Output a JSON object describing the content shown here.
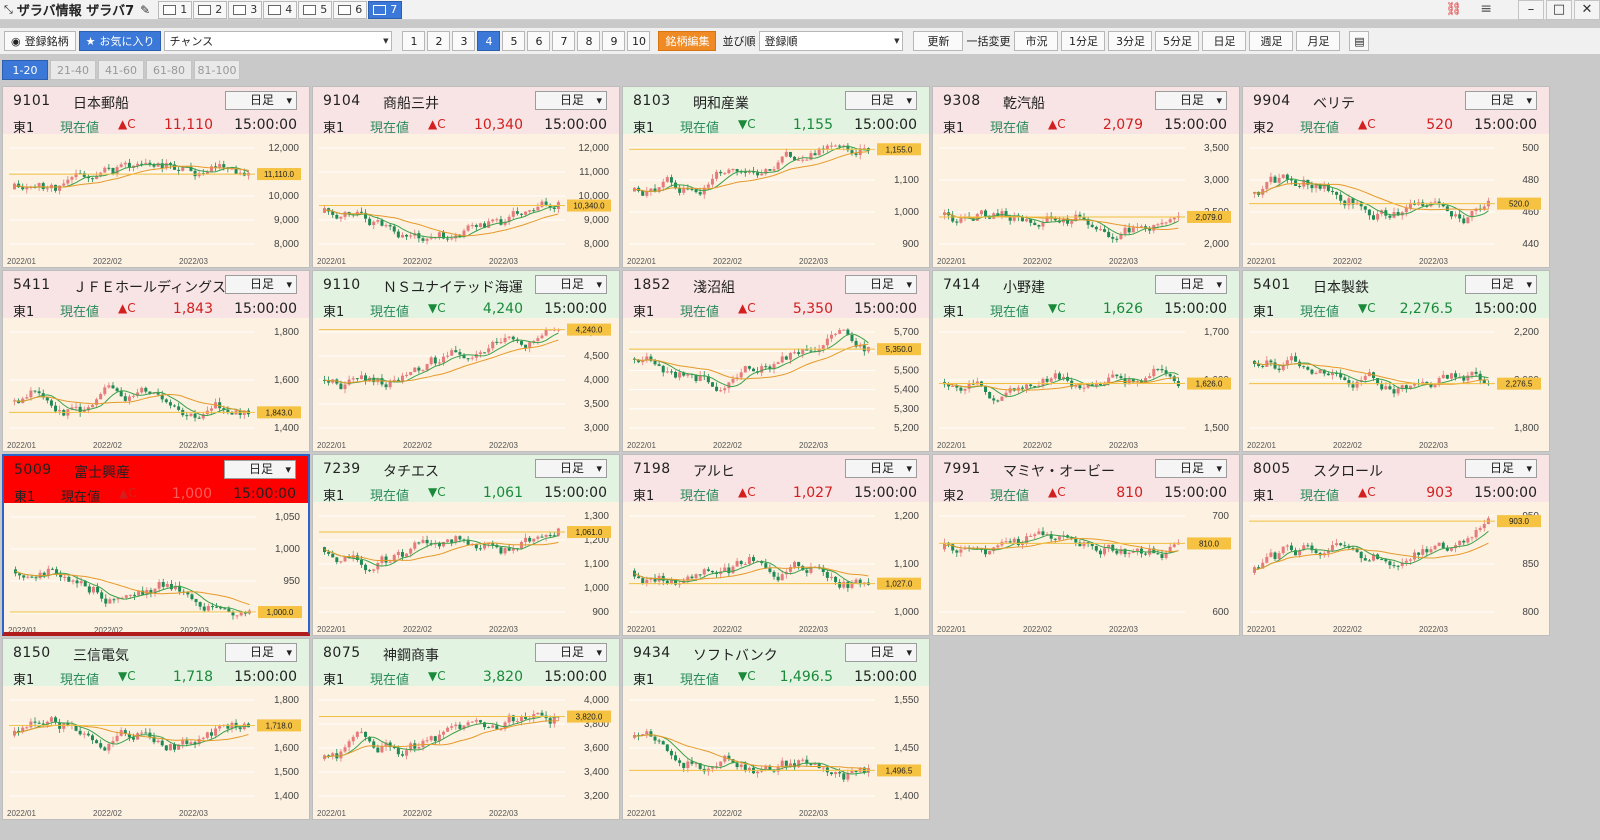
{
  "app": {
    "title": "ザラバ情報 ザラバ7",
    "view_tabs": [
      "1",
      "2",
      "3",
      "4",
      "5",
      "6",
      "7"
    ],
    "active_view": "7"
  },
  "toolbar": {
    "registered_btn": "登録銘柄",
    "favorites_btn": "お気に入り",
    "chance_value": "チャンス",
    "page_nums": [
      "1",
      "2",
      "3",
      "4",
      "5",
      "6",
      "7",
      "8",
      "9",
      "10"
    ],
    "active_page": "4",
    "edit_btn": "銘柄編集",
    "sort_label": "並び順",
    "sort_value": "登録順",
    "refresh_btn": "更新",
    "bulk_label": "一括変更",
    "timeframes": [
      "市況",
      "1分足",
      "3分足",
      "5分足",
      "日足",
      "週足",
      "月足"
    ]
  },
  "page_tabs": [
    "1-20",
    "21-40",
    "41-60",
    "61-80",
    "81-100"
  ],
  "colors": {
    "up": "#d21f1f",
    "down": "#1a8a3a",
    "accent": "#3b78d8",
    "candle_up": "#e57b7b",
    "candle_down": "#1f8a55"
  },
  "panels": [
    {
      "code": "9101",
      "name": "日本郵船",
      "market": "東1",
      "current_label": "現在値",
      "dir": "up",
      "arrow": "▲C",
      "price": "11,110",
      "time": "15:00:00",
      "tf": "日足",
      "yticks": [
        "12,000",
        "11,000",
        "10,000",
        "9,000",
        "8,000"
      ],
      "last_label": "11,110.0",
      "xlabels": [
        "2022/01",
        "2022/02",
        "2022/03"
      ]
    },
    {
      "code": "9104",
      "name": "商船三井",
      "market": "東1",
      "current_label": "現在値",
      "dir": "up",
      "arrow": "▲C",
      "price": "10,340",
      "time": "15:00:00",
      "tf": "日足",
      "yticks": [
        "12,000",
        "11,000",
        "10,000",
        "9,000",
        "8,000"
      ],
      "last_label": "10,340.0",
      "xlabels": [
        "2022/01",
        "2022/02",
        "2022/03"
      ]
    },
    {
      "code": "8103",
      "name": "明和産業",
      "market": "東1",
      "current_label": "現在値",
      "dir": "down",
      "arrow": "▼C",
      "price": "1,155",
      "time": "15:00:00",
      "tf": "日足",
      "yticks": [
        "1,200",
        "1,100",
        "1,000",
        "900"
      ],
      "last_label": "1,155.0",
      "xlabels": [
        "2022/01",
        "2022/02",
        "2022/03"
      ]
    },
    {
      "code": "9308",
      "name": "乾汽船",
      "market": "東1",
      "current_label": "現在値",
      "dir": "up",
      "arrow": "▲C",
      "price": "2,079",
      "time": "15:00:00",
      "tf": "日足",
      "yticks": [
        "3,500",
        "3,000",
        "2,500",
        "2,000"
      ],
      "last_label": "2,079.0",
      "xlabels": [
        "2022/01",
        "2022/02",
        "2022/03"
      ]
    },
    {
      "code": "9904",
      "name": "ベリテ",
      "market": "東2",
      "current_label": "現在値",
      "dir": "up",
      "arrow": "▲C",
      "price": "520",
      "time": "15:00:00",
      "tf": "日足",
      "yticks": [
        "500",
        "480",
        "460",
        "440"
      ],
      "last_label": "520.0",
      "xlabels": [
        "2022/01",
        "2022/02",
        "2022/03"
      ]
    },
    {
      "code": "5411",
      "name": "ＪＦＥホールディングス",
      "market": "東1",
      "current_label": "現在値",
      "dir": "up",
      "arrow": "▲C",
      "price": "1,843",
      "time": "15:00:00",
      "tf": "日足",
      "yticks": [
        "1,800",
        "1,600",
        "1,400"
      ],
      "last_label": "1,843.0",
      "xlabels": [
        "2022/01",
        "2022/02",
        "2022/03"
      ]
    },
    {
      "code": "9110",
      "name": "ＮＳユナイテッド海運",
      "market": "東1",
      "current_label": "現在値",
      "dir": "down",
      "arrow": "▼C",
      "price": "4,240",
      "time": "15:00:00",
      "tf": "日足",
      "yticks": [
        "5,000",
        "4,500",
        "4,000",
        "3,500",
        "3,000"
      ],
      "last_label": "4,240.0",
      "xlabels": [
        "2022/01",
        "2022/02",
        "2022/03"
      ]
    },
    {
      "code": "1852",
      "name": "淺沼組",
      "market": "東1",
      "current_label": "現在値",
      "dir": "up",
      "arrow": "▲C",
      "price": "5,350",
      "time": "15:00:00",
      "tf": "日足",
      "yticks": [
        "5,700",
        "5,600",
        "5,500",
        "5,400",
        "5,300",
        "5,200"
      ],
      "last_label": "5,350.0",
      "xlabels": [
        "2022/01",
        "2022/02",
        "2022/03"
      ]
    },
    {
      "code": "7414",
      "name": "小野建",
      "market": "東1",
      "current_label": "現在値",
      "dir": "down",
      "arrow": "▼C",
      "price": "1,626",
      "time": "15:00:00",
      "tf": "日足",
      "yticks": [
        "1,700",
        "1,600",
        "1,500"
      ],
      "last_label": "1,626.0",
      "xlabels": [
        "2022/01",
        "2022/02",
        "2022/03"
      ]
    },
    {
      "code": "5401",
      "name": "日本製鉄",
      "market": "東1",
      "current_label": "現在値",
      "dir": "down",
      "arrow": "▼C",
      "price": "2,276.5",
      "time": "15:00:00",
      "tf": "日足",
      "yticks": [
        "2,200",
        "2,000",
        "1,800"
      ],
      "last_label": "2,276.5",
      "xlabels": [
        "2022/01",
        "2022/02",
        "2022/03"
      ]
    },
    {
      "code": "5009",
      "name": "富士興産",
      "market": "東1",
      "current_label": "現在値",
      "dir": "up",
      "arrow": "▲C",
      "price": "1,000",
      "time": "15:00:00",
      "tf": "日足",
      "yticks": [
        "1,050",
        "1,000",
        "950",
        "900"
      ],
      "last_label": "1,000.0",
      "xlabels": [
        "2022/01",
        "2022/02",
        "2022/03"
      ],
      "selected": true
    },
    {
      "code": "7239",
      "name": "タチエス",
      "market": "東1",
      "current_label": "現在値",
      "dir": "down",
      "arrow": "▼C",
      "price": "1,061",
      "time": "15:00:00",
      "tf": "日足",
      "yticks": [
        "1,300",
        "1,200",
        "1,100",
        "1,000",
        "900"
      ],
      "last_label": "1,061.0",
      "xlabels": [
        "2022/01",
        "2022/02",
        "2022/03"
      ]
    },
    {
      "code": "7198",
      "name": "アルヒ",
      "market": "東1",
      "current_label": "現在値",
      "dir": "up",
      "arrow": "▲C",
      "price": "1,027",
      "time": "15:00:00",
      "tf": "日足",
      "yticks": [
        "1,200",
        "1,100",
        "1,000"
      ],
      "last_label": "1,027.0",
      "xlabels": [
        "2022/01",
        "2022/02",
        "2022/03"
      ]
    },
    {
      "code": "7991",
      "name": "マミヤ・オービー",
      "market": "東2",
      "current_label": "現在値",
      "dir": "up",
      "arrow": "▲C",
      "price": "810",
      "time": "15:00:00",
      "tf": "日足",
      "yticks": [
        "700",
        "600"
      ],
      "last_label": "810.0",
      "xlabels": [
        "2022/01",
        "2022/02",
        "2022/03"
      ]
    },
    {
      "code": "8005",
      "name": "スクロール",
      "market": "東1",
      "current_label": "現在値",
      "dir": "up",
      "arrow": "▲C",
      "price": "903",
      "time": "15:00:00",
      "tf": "日足",
      "yticks": [
        "950",
        "850",
        "800"
      ],
      "last_label": "903.0",
      "xlabels": [
        "2022/01",
        "2022/02",
        "2022/03"
      ]
    },
    {
      "code": "8150",
      "name": "三信電気",
      "market": "東1",
      "current_label": "現在値",
      "dir": "down",
      "arrow": "▼C",
      "price": "1,718",
      "time": "15:00:00",
      "tf": "日足",
      "yticks": [
        "1,800",
        "1,700",
        "1,600",
        "1,500",
        "1,400"
      ],
      "last_label": "1,718.0",
      "xlabels": [
        "2022/01",
        "2022/02",
        "2022/03"
      ]
    },
    {
      "code": "8075",
      "name": "神鋼商事",
      "market": "東1",
      "current_label": "現在値",
      "dir": "down",
      "arrow": "▼C",
      "price": "3,820",
      "time": "15:00:00",
      "tf": "日足",
      "yticks": [
        "4,000",
        "3,800",
        "3,600",
        "3,400",
        "3,200"
      ],
      "last_label": "3,820.0",
      "xlabels": [
        "2022/01",
        "2022/02",
        "2022/03"
      ]
    },
    {
      "code": "9434",
      "name": "ソフトバンク",
      "market": "東1",
      "current_label": "現在値",
      "dir": "down",
      "arrow": "▼C",
      "price": "1,496.5",
      "time": "15:00:00",
      "tf": "日足",
      "yticks": [
        "1,550",
        "1,450",
        "1,400"
      ],
      "last_label": "1,496.5",
      "xlabels": [
        "2022/01",
        "2022/02",
        "2022/03"
      ]
    }
  ]
}
